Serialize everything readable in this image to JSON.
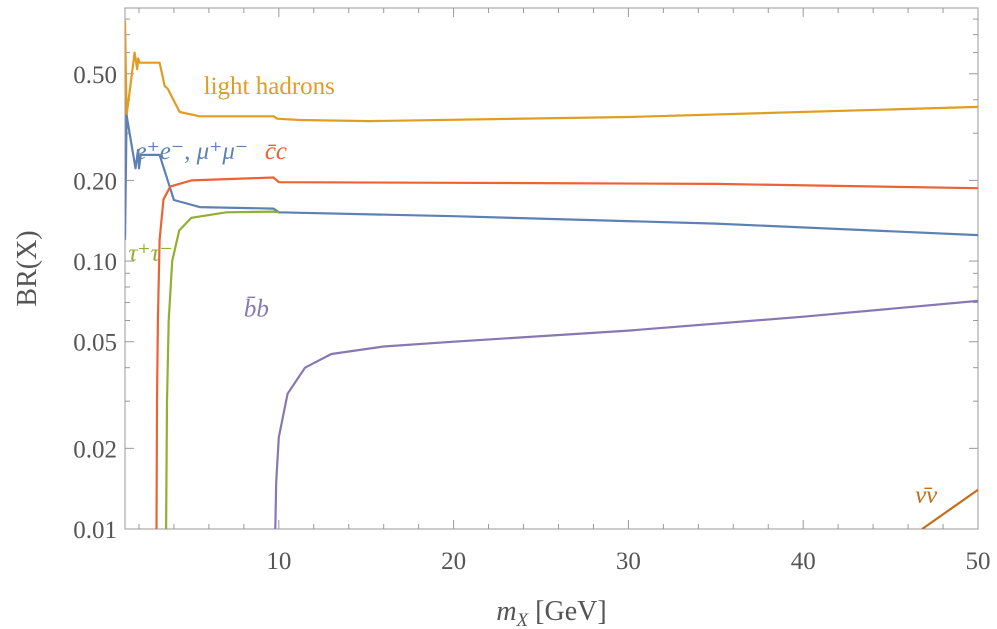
{
  "chart_data": {
    "type": "line",
    "xlabel": {
      "var": "m",
      "sub": "X",
      "unit": " [GeV]"
    },
    "ylabel": "BR(X)",
    "xlim": [
      1.2,
      50
    ],
    "ylim": [
      0.01,
      0.88
    ],
    "yscale": "log",
    "grid": false,
    "xticks": [
      10,
      20,
      30,
      40,
      50
    ],
    "yticks": [
      {
        "v": 0.01,
        "label": "0.01"
      },
      {
        "v": 0.02,
        "label": "0.02"
      },
      {
        "v": 0.05,
        "label": "0.05"
      },
      {
        "v": 0.1,
        "label": "0.10"
      },
      {
        "v": 0.2,
        "label": "0.20"
      },
      {
        "v": 0.5,
        "label": "0.50"
      }
    ],
    "series": [
      {
        "name": "light hadrons",
        "color": "#E19C24",
        "points": [
          [
            1.2,
            0.79
          ],
          [
            1.29,
            0.35
          ],
          [
            1.75,
            0.6
          ],
          [
            1.9,
            0.52
          ],
          [
            1.95,
            0.57
          ],
          [
            2.04,
            0.55
          ],
          [
            3.18,
            0.55
          ],
          [
            3.47,
            0.45
          ],
          [
            3.64,
            0.44
          ],
          [
            4.33,
            0.36
          ],
          [
            5.48,
            0.347
          ],
          [
            9.7,
            0.347
          ],
          [
            9.9,
            0.34
          ],
          [
            11.2,
            0.336
          ],
          [
            15.2,
            0.333
          ],
          [
            30,
            0.345
          ],
          [
            50,
            0.376
          ]
        ]
      },
      {
        "name": "e⁺e⁻, μ⁺μ⁻",
        "color": "#5E81B5",
        "points": [
          [
            1.2,
            0.12
          ],
          [
            1.29,
            0.35
          ],
          [
            1.8,
            0.222
          ],
          [
            1.95,
            0.26
          ],
          [
            2.0,
            0.222
          ],
          [
            2.1,
            0.249
          ],
          [
            3.18,
            0.249
          ],
          [
            3.64,
            0.2
          ],
          [
            4.0,
            0.169
          ],
          [
            5.48,
            0.159
          ],
          [
            9.7,
            0.157
          ],
          [
            10.0,
            0.152
          ],
          [
            20,
            0.147
          ],
          [
            35,
            0.138
          ],
          [
            50,
            0.125
          ]
        ]
      },
      {
        "name": "c̄c",
        "color": "#EB6235",
        "points": [
          [
            3.0,
            0.01
          ],
          [
            3.03,
            0.03
          ],
          [
            3.08,
            0.06
          ],
          [
            3.18,
            0.12
          ],
          [
            3.4,
            0.17
          ],
          [
            3.8,
            0.19
          ],
          [
            5,
            0.2
          ],
          [
            9.7,
            0.205
          ],
          [
            10,
            0.197
          ],
          [
            20,
            0.196
          ],
          [
            35,
            0.194
          ],
          [
            50,
            0.187
          ]
        ]
      },
      {
        "name": "τ⁺τ⁻",
        "color": "#8FB032",
        "points": [
          [
            3.55,
            0.01
          ],
          [
            3.6,
            0.03
          ],
          [
            3.7,
            0.06
          ],
          [
            3.9,
            0.1
          ],
          [
            4.3,
            0.13
          ],
          [
            5,
            0.145
          ],
          [
            7,
            0.152
          ],
          [
            9.7,
            0.153
          ],
          [
            10,
            0.152
          ]
        ]
      },
      {
        "name": "b̄b",
        "color": "#8778B3",
        "points": [
          [
            9.8,
            0.01
          ],
          [
            9.85,
            0.015
          ],
          [
            10,
            0.022
          ],
          [
            10.5,
            0.032
          ],
          [
            11.5,
            0.04
          ],
          [
            13,
            0.045
          ],
          [
            16,
            0.048
          ],
          [
            20,
            0.05
          ],
          [
            30,
            0.055
          ],
          [
            40,
            0.062
          ],
          [
            50,
            0.071
          ]
        ]
      },
      {
        "name": "ν̄ν",
        "color": "#C56E1A",
        "points": [
          [
            46.8,
            0.01
          ],
          [
            50,
            0.014
          ]
        ]
      }
    ],
    "annotations": [
      {
        "text": "light hadrons",
        "x": 5.7,
        "y": 0.42,
        "series": 0
      },
      {
        "text": "e⁺e⁻, μ⁺μ⁻",
        "x": 1.8,
        "y": 0.24,
        "series": 1
      },
      {
        "text": "c̄c",
        "x": 9.2,
        "y": 0.24,
        "series": 2
      },
      {
        "text": "τ⁺τ⁻",
        "x": 1.4,
        "y": 0.1,
        "series": 3
      },
      {
        "text": "b̄b",
        "x": 8.0,
        "y": 0.062,
        "series": 4
      },
      {
        "text": "ν̄ν",
        "x": 46.4,
        "y": 0.0125,
        "series": 5
      }
    ]
  }
}
